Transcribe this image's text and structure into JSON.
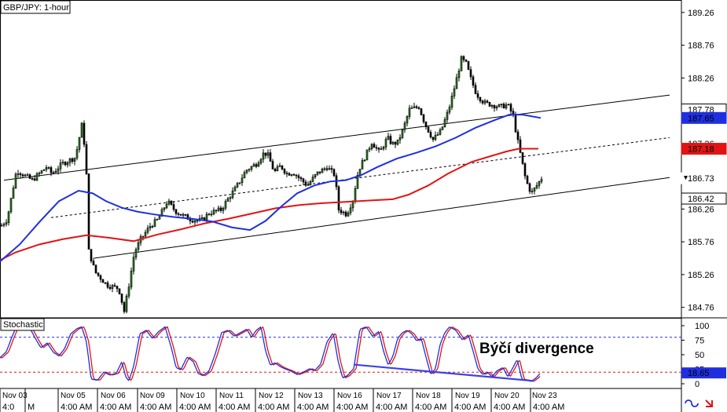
{
  "chart_data": {
    "type": "candlestick",
    "title": "GBP/JPY: 1-hour",
    "price_axis": {
      "ylim": [
        184.6,
        189.45
      ],
      "ticks": [
        184.76,
        185.26,
        185.76,
        186.26,
        187.26,
        188.26,
        188.76,
        189.26
      ],
      "badges": [
        {
          "value": 187.78,
          "label": "187.78",
          "bg": "#ffffff",
          "fg": "#000000",
          "border": "#000000",
          "arrow": false
        },
        {
          "value": 187.65,
          "label": "187.65",
          "bg": "#1f2fe0",
          "fg": "#ffffff",
          "border": "#1f2fe0",
          "arrow": false
        },
        {
          "value": 187.18,
          "label": "187.18",
          "bg": "#e01414",
          "fg": "#ffffff",
          "border": "#e01414",
          "arrow": false
        },
        {
          "value": 186.73,
          "label": "186.73",
          "bg": "#ffffff",
          "fg": "#000000",
          "border": "#ffffff",
          "arrow": true
        },
        {
          "value": 186.42,
          "label": "186.42",
          "bg": "#ffffff",
          "fg": "#000000",
          "border": "#000000",
          "arrow": false
        }
      ]
    },
    "time_axis": {
      "day_labels": [
        "Nov 03",
        "Nov 05",
        "Nov 06",
        "Nov 09",
        "Nov 10",
        "Nov 11",
        "Nov 12",
        "Nov 13",
        "Nov 16",
        "Nov 17",
        "Nov 18",
        "Nov 19",
        "Nov 20",
        "Nov 23"
      ],
      "time_labels": [
        "4:0",
        "M",
        "4:00 AM",
        "4:00 AM",
        "4:00 AM",
        "4:00 AM",
        "4:00 AM",
        "4:00 AM",
        "4:00 AM",
        "4:00 AM",
        "4:00 AM",
        "4:00 AM",
        "4:00 AM",
        "4:00 AM",
        "4:00 AM"
      ]
    },
    "series": [
      {
        "name": "",
        "kind": "moving-average",
        "color": "#e01414",
        "points": [
          [
            0,
            185.48
          ],
          [
            20,
            185.6
          ],
          [
            50,
            185.72
          ],
          [
            80,
            185.8
          ],
          [
            110,
            185.86
          ],
          [
            140,
            185.82
          ],
          [
            170,
            185.77
          ],
          [
            200,
            185.87
          ],
          [
            230,
            185.95
          ],
          [
            260,
            186.04
          ],
          [
            290,
            186.11
          ],
          [
            320,
            186.19
          ],
          [
            350,
            186.27
          ],
          [
            380,
            186.32
          ],
          [
            410,
            186.35
          ],
          [
            440,
            186.37
          ],
          [
            470,
            186.39
          ],
          [
            500,
            186.41
          ],
          [
            520,
            186.48
          ],
          [
            545,
            186.62
          ],
          [
            570,
            186.8
          ],
          [
            600,
            186.98
          ],
          [
            625,
            187.07
          ],
          [
            645,
            187.14
          ],
          [
            660,
            187.18
          ],
          [
            685,
            187.18
          ]
        ]
      },
      {
        "name": "",
        "kind": "moving-average",
        "color": "#1f2fe0",
        "points": [
          [
            0,
            185.46
          ],
          [
            25,
            185.72
          ],
          [
            50,
            186.06
          ],
          [
            75,
            186.38
          ],
          [
            100,
            186.54
          ],
          [
            118,
            186.5
          ],
          [
            135,
            186.38
          ],
          [
            155,
            186.28
          ],
          [
            175,
            186.22
          ],
          [
            195,
            186.18
          ],
          [
            220,
            186.14
          ],
          [
            245,
            186.11
          ],
          [
            270,
            186.07
          ],
          [
            295,
            185.98
          ],
          [
            318,
            185.94
          ],
          [
            338,
            186.08
          ],
          [
            358,
            186.3
          ],
          [
            378,
            186.5
          ],
          [
            400,
            186.62
          ],
          [
            420,
            186.68
          ],
          [
            440,
            186.7
          ],
          [
            460,
            186.78
          ],
          [
            480,
            186.9
          ],
          [
            505,
            187.03
          ],
          [
            530,
            187.12
          ],
          [
            555,
            187.22
          ],
          [
            580,
            187.35
          ],
          [
            605,
            187.5
          ],
          [
            630,
            187.62
          ],
          [
            648,
            187.7
          ],
          [
            665,
            187.7
          ],
          [
            688,
            187.65
          ]
        ]
      }
    ],
    "channel_lines": [
      {
        "style": "solid",
        "points": [
          [
            5,
            186.7
          ],
          [
            852,
            188.0
          ]
        ]
      },
      {
        "style": "dashed",
        "points": [
          [
            65,
            186.13
          ],
          [
            852,
            187.35
          ]
        ]
      },
      {
        "style": "solid",
        "points": [
          [
            120,
            185.51
          ],
          [
            852,
            186.74
          ]
        ]
      }
    ],
    "candles": {
      "waypoints": [
        [
          0,
          186.0
        ],
        [
          8,
          186.1
        ],
        [
          20,
          186.85
        ],
        [
          40,
          186.7
        ],
        [
          58,
          186.9
        ],
        [
          65,
          186.8
        ],
        [
          78,
          186.95
        ],
        [
          95,
          187.05
        ],
        [
          104,
          187.6
        ],
        [
          110,
          186.62
        ],
        [
          112,
          185.62
        ],
        [
          120,
          185.3
        ],
        [
          135,
          185.1
        ],
        [
          150,
          185.05
        ],
        [
          157,
          184.7
        ],
        [
          163,
          185.1
        ],
        [
          170,
          185.6
        ],
        [
          178,
          185.8
        ],
        [
          190,
          186.0
        ],
        [
          200,
          186.1
        ],
        [
          212,
          186.38
        ],
        [
          222,
          186.23
        ],
        [
          230,
          186.17
        ],
        [
          242,
          186.1
        ],
        [
          255,
          186.08
        ],
        [
          265,
          186.2
        ],
        [
          280,
          186.25
        ],
        [
          290,
          186.43
        ],
        [
          300,
          186.6
        ],
        [
          312,
          186.85
        ],
        [
          325,
          186.95
        ],
        [
          335,
          187.12
        ],
        [
          340,
          187.08
        ],
        [
          348,
          186.82
        ],
        [
          356,
          186.92
        ],
        [
          364,
          186.8
        ],
        [
          372,
          186.82
        ],
        [
          380,
          186.73
        ],
        [
          390,
          186.62
        ],
        [
          402,
          186.8
        ],
        [
          415,
          186.9
        ],
        [
          425,
          186.78
        ],
        [
          430,
          186.25
        ],
        [
          440,
          186.18
        ],
        [
          448,
          186.4
        ],
        [
          455,
          186.85
        ],
        [
          462,
          187.02
        ],
        [
          472,
          187.28
        ],
        [
          482,
          187.12
        ],
        [
          492,
          187.35
        ],
        [
          498,
          187.25
        ],
        [
          505,
          187.28
        ],
        [
          512,
          187.48
        ],
        [
          520,
          187.78
        ],
        [
          532,
          187.82
        ],
        [
          540,
          187.55
        ],
        [
          550,
          187.32
        ],
        [
          560,
          187.45
        ],
        [
          570,
          187.78
        ],
        [
          578,
          188.15
        ],
        [
          586,
          188.55
        ],
        [
          592,
          188.48
        ],
        [
          598,
          188.25
        ],
        [
          605,
          188.02
        ],
        [
          615,
          187.88
        ],
        [
          625,
          187.85
        ],
        [
          635,
          187.82
        ],
        [
          645,
          187.85
        ],
        [
          652,
          187.68
        ],
        [
          656,
          187.4
        ],
        [
          662,
          187.05
        ],
        [
          668,
          186.7
        ],
        [
          675,
          186.5
        ],
        [
          682,
          186.62
        ],
        [
          688,
          186.73
        ]
      ],
      "up_color": "#2a7d1f",
      "down_color": "#000000"
    },
    "indicator": {
      "name": "Stochastic",
      "ylim": [
        0,
        100
      ],
      "ticks": [
        0,
        25,
        50,
        75,
        100
      ],
      "levels": [
        80,
        20
      ],
      "level_color": "#1f2fe0",
      "badges": [
        {
          "value": 18.65,
          "label": "18.65",
          "bg": "#1f2fe0",
          "fg": "#ffffff"
        }
      ],
      "main_color": "#1f2fe0",
      "signal_color": "#e01414",
      "waypoints": [
        [
          0,
          45
        ],
        [
          8,
          55
        ],
        [
          15,
          80
        ],
        [
          20,
          96
        ],
        [
          28,
          100
        ],
        [
          38,
          96
        ],
        [
          45,
          78
        ],
        [
          52,
          62
        ],
        [
          60,
          70
        ],
        [
          68,
          54
        ],
        [
          75,
          48
        ],
        [
          82,
          60
        ],
        [
          90,
          86
        ],
        [
          98,
          95
        ],
        [
          104,
          98
        ],
        [
          110,
          72
        ],
        [
          116,
          8
        ],
        [
          124,
          6
        ],
        [
          132,
          20
        ],
        [
          140,
          15
        ],
        [
          148,
          18
        ],
        [
          155,
          38
        ],
        [
          160,
          12
        ],
        [
          164,
          5
        ],
        [
          170,
          30
        ],
        [
          178,
          86
        ],
        [
          186,
          92
        ],
        [
          194,
          78
        ],
        [
          202,
          90
        ],
        [
          210,
          98
        ],
        [
          218,
          62
        ],
        [
          224,
          28
        ],
        [
          230,
          24
        ],
        [
          238,
          46
        ],
        [
          246,
          38
        ],
        [
          252,
          18
        ],
        [
          258,
          14
        ],
        [
          266,
          22
        ],
        [
          274,
          52
        ],
        [
          282,
          88
        ],
        [
          290,
          92
        ],
        [
          298,
          82
        ],
        [
          306,
          88
        ],
        [
          314,
          94
        ],
        [
          320,
          80
        ],
        [
          326,
          92
        ],
        [
          332,
          98
        ],
        [
          338,
          56
        ],
        [
          344,
          32
        ],
        [
          350,
          36
        ],
        [
          356,
          30
        ],
        [
          362,
          26
        ],
        [
          370,
          22
        ],
        [
          378,
          16
        ],
        [
          386,
          20
        ],
        [
          394,
          26
        ],
        [
          400,
          22
        ],
        [
          408,
          34
        ],
        [
          416,
          72
        ],
        [
          424,
          88
        ],
        [
          430,
          40
        ],
        [
          436,
          10
        ],
        [
          442,
          14
        ],
        [
          450,
          26
        ],
        [
          458,
          94
        ],
        [
          466,
          98
        ],
        [
          474,
          82
        ],
        [
          482,
          90
        ],
        [
          488,
          56
        ],
        [
          494,
          32
        ],
        [
          500,
          48
        ],
        [
          506,
          78
        ],
        [
          512,
          88
        ],
        [
          518,
          92
        ],
        [
          524,
          86
        ],
        [
          530,
          74
        ],
        [
          536,
          78
        ],
        [
          542,
          46
        ],
        [
          548,
          16
        ],
        [
          554,
          26
        ],
        [
          560,
          68
        ],
        [
          566,
          88
        ],
        [
          572,
          98
        ],
        [
          580,
          92
        ],
        [
          588,
          76
        ],
        [
          596,
          84
        ],
        [
          602,
          56
        ],
        [
          608,
          26
        ],
        [
          614,
          16
        ],
        [
          620,
          20
        ],
        [
          626,
          12
        ],
        [
          632,
          22
        ],
        [
          640,
          28
        ],
        [
          646,
          12
        ],
        [
          652,
          26
        ],
        [
          658,
          42
        ],
        [
          664,
          8
        ],
        [
          670,
          6
        ],
        [
          676,
          4
        ],
        [
          682,
          10
        ],
        [
          688,
          19
        ]
      ],
      "divergence_line": [
        [
          450,
          33
        ],
        [
          678,
          5
        ]
      ],
      "annotation": "Býčí divergence"
    }
  }
}
